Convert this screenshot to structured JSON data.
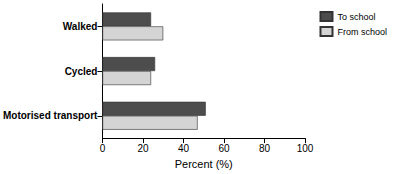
{
  "chart_data": {
    "type": "bar",
    "orientation": "horizontal",
    "categories": [
      "Walked",
      "Cycled",
      "Motorised transport"
    ],
    "series": [
      {
        "name": "To school",
        "color": "#4d4d4d",
        "values": [
          24,
          26,
          51
        ]
      },
      {
        "name": "From school",
        "color": "#d4d4d4",
        "values": [
          30,
          24,
          47
        ]
      }
    ],
    "xlabel": "Percent (%)",
    "xlim": [
      0,
      100
    ],
    "xticks": [
      0,
      20,
      40,
      60,
      80,
      100
    ],
    "grid": false,
    "legend": "upper right"
  }
}
